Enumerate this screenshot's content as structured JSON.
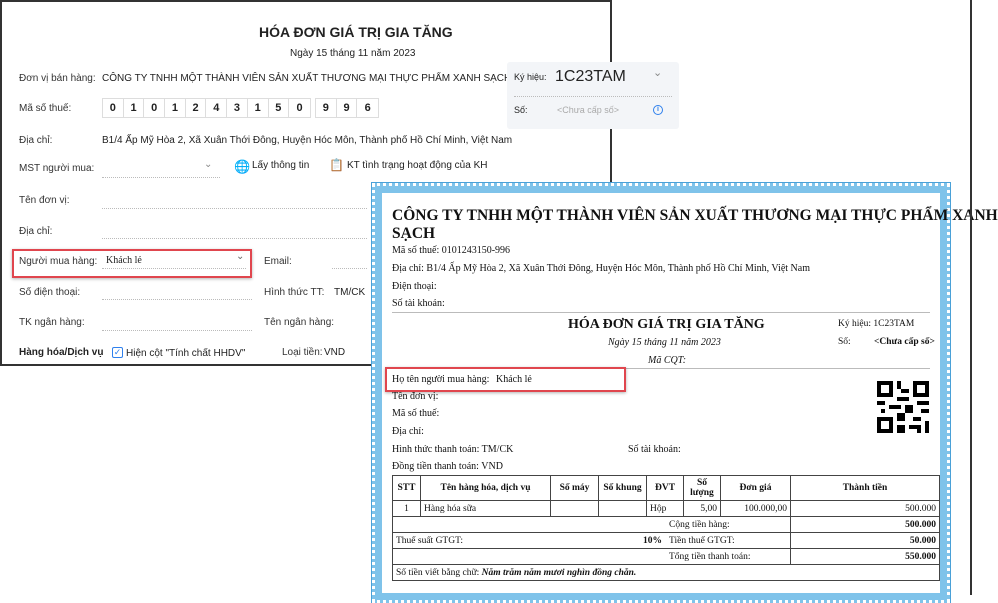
{
  "form": {
    "title": "HÓA ĐƠN GIÁ TRỊ GIA TĂNG",
    "date": "Ngày 15 tháng 11 năm 2023",
    "seller_label": "Đơn vị bán hàng:",
    "seller_value": "CÔNG TY TNHH MỘT THÀNH VIÊN SẢN XUẤT THƯƠNG MẠI THỰC PHẨM XANH SẠCH",
    "tax_label": "Mã số thuế:",
    "tax_digits": [
      "0",
      "1",
      "0",
      "1",
      "2",
      "4",
      "3",
      "1",
      "5",
      "0"
    ],
    "tax_branch": [
      "9",
      "9",
      "6"
    ],
    "address_label": "Địa chỉ:",
    "address_value": "B1/4 Ấp Mỹ Hòa 2, Xã Xuân Thới Đông, Huyện Hóc Môn, Thành phố Hồ Chí Minh, Việt Nam",
    "buyer_tax_label": "MST người mua:",
    "get_info": "Lấy thông tin",
    "check_status": "KT tình trạng hoạt động của KH",
    "unit_name_label": "Tên đơn vị:",
    "buyer_address_label": "Địa chỉ:",
    "buyer_label": "Người mua hàng:",
    "buyer_value": "Khách lẻ",
    "email_label": "Email:",
    "phone_label": "Số điện thoại:",
    "payment_label": "Hình thức TT:",
    "payment_value": "TM/CK",
    "bank_acc_label": "TK ngân hàng:",
    "bank_name_label": "Tên ngân hàng:",
    "goods_label": "Hàng hóa/Dịch vụ",
    "show_col_label": "Hiện cột \"Tính chất HHDV\"",
    "show_col_checked": true,
    "currency_label": "Loại tiền:",
    "currency_value": "VND",
    "symbol_label": "Ký hiệu:",
    "symbol_value": "1C23TAM",
    "number_label": "Số:",
    "number_placeholder": "<Chưa cấp số>"
  },
  "preview": {
    "company_line1": "CÔNG TY TNHH MỘT THÀNH VIÊN SẢN XUẤT THƯƠNG MẠI THỰC PHẨM XANH",
    "company_line2": "SẠCH",
    "tax": "Mã số thuế: 0101243150-996",
    "address": "Địa chỉ: B1/4 Ấp Mỹ Hòa 2, Xã Xuân Thới Đông, Huyện Hóc Môn, Thành phố Hồ Chí Minh, Việt Nam",
    "phone": "Điện thoại:",
    "account": "Số tài khoản:",
    "title": "HÓA ĐƠN GIÁ TRỊ GIA TĂNG",
    "date": "Ngày 15 tháng 11 năm 2023",
    "cqt": "Mã CQT:",
    "symbol": "Ký hiệu: 1C23TAM",
    "number_label": "Số:",
    "number_value": "<Chưa cấp số>",
    "buyer": "Họ tên người mua hàng:",
    "buyer_value": "Khách lẻ",
    "unit": "Tên đơn vị:",
    "buyer_tax": "Mã số thuế:",
    "buyer_address": "Địa chỉ:",
    "payment": "Hình thức thanh toán: TM/CK",
    "buyer_account": "Số tài khoản:",
    "currency": "Đồng tiền thanh toán: VND",
    "headers": [
      "STT",
      "Tên hàng hóa, dịch vụ",
      "Số máy",
      "Số khung",
      "ĐVT",
      "Số lượng",
      "Đơn giá",
      "Thành tiền"
    ],
    "rows": [
      [
        "1",
        "Hàng hóa sữa",
        "",
        "",
        "Hộp",
        "5,00",
        "100.000,00",
        "500.000"
      ]
    ],
    "subtotal_label": "Cộng tiền hàng:",
    "subtotal": "500.000",
    "vat_rate_label": "Thuế suất GTGT:",
    "vat_rate": "10%",
    "vat_label": "Tiền thuế GTGT:",
    "vat": "50.000",
    "total_label": "Tổng tiền thanh toán:",
    "total": "550.000",
    "words_label": "Số tiền viết bằng chữ:",
    "words": "Năm trăm năm mươi nghìn đồng chẵn."
  },
  "colors": {
    "highlight": "#e0464e",
    "border_pattern": "#7fc3ea",
    "accent": "#2f80ed"
  }
}
